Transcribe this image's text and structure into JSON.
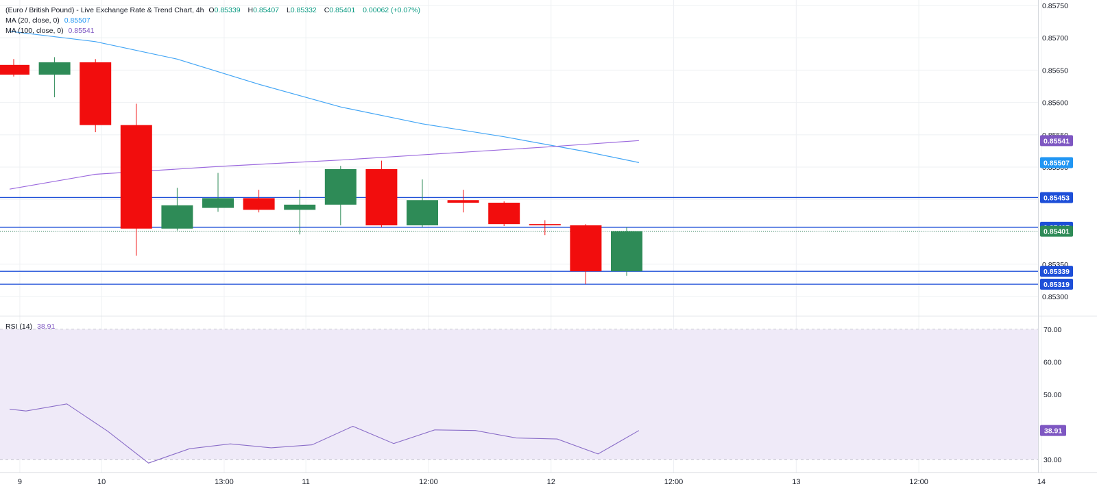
{
  "header": {
    "title": "(Euro / British Pound) - Live Exchange Rate & Trend Chart, 4h",
    "ohlc": [
      {
        "k": "O",
        "v": "0.85339"
      },
      {
        "k": "H",
        "v": "0.85407"
      },
      {
        "k": "L",
        "v": "0.85332"
      },
      {
        "k": "C",
        "v": "0.85401"
      }
    ],
    "change": "0.00062 (+0.07%)"
  },
  "indicators": {
    "ma20": {
      "label": "MA (20, close, 0)",
      "value": "0.85507"
    },
    "ma100": {
      "label": "MA (100, close, 0)",
      "value": "0.85541"
    },
    "rsi": {
      "label": "RSI (14)",
      "value": "38.91"
    }
  },
  "colors": {
    "bull": "#2e8b57",
    "bear": "#f20d0d",
    "ma20": "#42a5f5",
    "ma100": "#9c6ade",
    "rsi": "#8a6dc8",
    "hline": "#1e4fd8",
    "close_label": "#2e8b57",
    "rsi_band": "#efeaf8"
  },
  "chart_data": [
    {
      "type": "candlestick",
      "title": "(Euro / British Pound) - Live Exchange Rate & Trend Chart, 4h",
      "ylim": [
        0.85282,
        0.85752
      ],
      "y_ticks": [
        "0.85300",
        "0.85350",
        "0.85400",
        "0.85450",
        "0.85500",
        "0.85550",
        "0.85600",
        "0.85650",
        "0.85700",
        "0.85750"
      ],
      "x_ticks": [
        {
          "label": "9",
          "x": 0.15
        },
        {
          "label": "10",
          "x": 2.15
        },
        {
          "label": "13:00",
          "x": 5.15
        },
        {
          "label": "11",
          "x": 7.15
        },
        {
          "label": "12:00",
          "x": 10.15
        },
        {
          "label": "12",
          "x": 13.15
        },
        {
          "label": "12:00",
          "x": 16.15
        },
        {
          "label": "13",
          "x": 19.15
        },
        {
          "label": "12:00",
          "x": 22.15
        },
        {
          "label": "14",
          "x": 25.15
        }
      ],
      "candles": [
        {
          "i": 0,
          "o": 0.85658,
          "h": 0.85667,
          "l": 0.8564,
          "c": 0.85643
        },
        {
          "i": 1,
          "o": 0.85643,
          "h": 0.8567,
          "l": 0.85608,
          "c": 0.85662
        },
        {
          "i": 2,
          "o": 0.85662,
          "h": 0.85667,
          "l": 0.85554,
          "c": 0.85565
        },
        {
          "i": 3,
          "o": 0.85565,
          "h": 0.85598,
          "l": 0.85363,
          "c": 0.85405
        },
        {
          "i": 4,
          "o": 0.85405,
          "h": 0.85468,
          "l": 0.85402,
          "c": 0.85441
        },
        {
          "i": 5,
          "o": 0.85437,
          "h": 0.85491,
          "l": 0.85431,
          "c": 0.85452
        },
        {
          "i": 6,
          "o": 0.85452,
          "h": 0.85465,
          "l": 0.8543,
          "c": 0.85434
        },
        {
          "i": 7,
          "o": 0.85434,
          "h": 0.85465,
          "l": 0.85396,
          "c": 0.85442
        },
        {
          "i": 8,
          "o": 0.85442,
          "h": 0.85502,
          "l": 0.8541,
          "c": 0.85497
        },
        {
          "i": 9,
          "o": 0.85497,
          "h": 0.8551,
          "l": 0.85407,
          "c": 0.8541
        },
        {
          "i": 10,
          "o": 0.8541,
          "h": 0.85481,
          "l": 0.85407,
          "c": 0.85449
        },
        {
          "i": 11,
          "o": 0.85449,
          "h": 0.85465,
          "l": 0.8543,
          "c": 0.85445
        },
        {
          "i": 12,
          "o": 0.85445,
          "h": 0.85447,
          "l": 0.85409,
          "c": 0.85412
        },
        {
          "i": 13,
          "o": 0.85412,
          "h": 0.85418,
          "l": 0.85395,
          "c": 0.8541
        },
        {
          "i": 14,
          "o": 0.8541,
          "h": 0.85412,
          "l": 0.85319,
          "c": 0.85339
        },
        {
          "i": 15,
          "o": 0.85339,
          "h": 0.85407,
          "l": 0.85332,
          "c": 0.85401
        }
      ],
      "series": [
        {
          "name": "MA (20, close, 0)",
          "x": [
            -0.1,
            2.0,
            4.0,
            6.0,
            8.0,
            10.0,
            12.0,
            14.0,
            15.3
          ],
          "values": [
            0.8571,
            0.85694,
            0.85667,
            0.85628,
            0.85593,
            0.85567,
            0.85547,
            0.85524,
            0.85507
          ]
        },
        {
          "name": "MA (100, close, 0)",
          "x": [
            -0.1,
            2.0,
            5.0,
            8.0,
            11.0,
            13.0,
            15.3
          ],
          "values": [
            0.85466,
            0.85489,
            0.85501,
            0.85511,
            0.85523,
            0.85531,
            0.85541
          ]
        }
      ],
      "horizontal_lines": [
        0.85453,
        0.85407,
        0.85339,
        0.85319
      ],
      "price_labels": [
        {
          "value": 0.85541,
          "text": "0.85541",
          "color": "#7e57c2"
        },
        {
          "value": 0.85507,
          "text": "0.85507",
          "color": "#2196f3"
        },
        {
          "value": 0.85453,
          "text": "0.85453",
          "color": "#1e4fd8"
        },
        {
          "value": 0.85407,
          "text": "0.85407",
          "color": "#1e4fd8"
        },
        {
          "value": 0.85401,
          "text": "0.85401",
          "color": "#2e8b57"
        },
        {
          "value": 0.85339,
          "text": "0.85339",
          "color": "#1e4fd8"
        },
        {
          "value": 0.85319,
          "text": "0.85319",
          "color": "#1e4fd8"
        }
      ],
      "current_close": 0.85401,
      "grid": true
    },
    {
      "type": "line",
      "title": "RSI (14)",
      "ylim": [
        26,
        74
      ],
      "y_ticks": [
        "70.00",
        "60.00",
        "50.00",
        "30.00"
      ],
      "levels": [
        70,
        50,
        30
      ],
      "series": [
        {
          "name": "RSI (14)",
          "x": [
            -0.1,
            0.3,
            1.3,
            2.3,
            3.3,
            4.3,
            5.3,
            6.3,
            7.3,
            8.3,
            9.3,
            10.3,
            11.3,
            12.3,
            13.3,
            14.3,
            15.3
          ],
          "values": [
            45.5,
            44.9,
            47.1,
            38.7,
            28.9,
            33.3,
            34.8,
            33.6,
            34.5,
            40.2,
            34.9,
            39.1,
            38.9,
            36.6,
            36.3,
            31.7,
            38.91
          ]
        }
      ],
      "value_label": "38.91",
      "grid": true
    }
  ]
}
